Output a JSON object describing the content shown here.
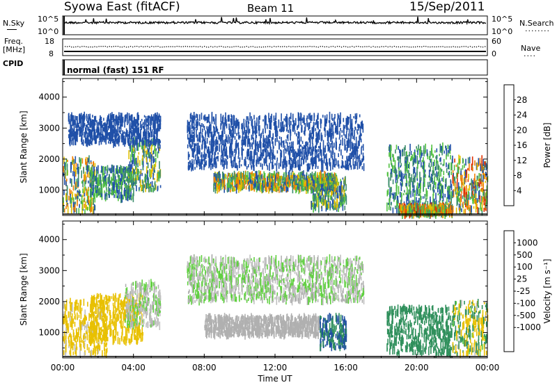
{
  "header": {
    "station": "Syowa East (fitACF)",
    "beam": "Beam 11",
    "date": "15/Sep/2011"
  },
  "strip_noise": {
    "left_label": "N.Sky",
    "right_label": "N.Search",
    "right_label_dots": "........",
    "tick_top": "10^5",
    "tick_bottom": "10^0"
  },
  "strip_freq": {
    "left_label_1": "Freq.",
    "left_label_2": "[MHz]",
    "left_tick_top": "18",
    "left_tick_bottom": "8",
    "right_label": "Nave",
    "right_label_dots": "....",
    "right_tick_top": "60",
    "right_tick_bottom": "0"
  },
  "cpid": {
    "label": "CPID",
    "text": "normal (fast) 151 RF"
  },
  "colors": {
    "power_scale": [
      "#0000ff",
      "#2050a8",
      "#3c8c6c",
      "#50c040",
      "#e0c000",
      "#f08000",
      "#e03000",
      "#ff0000"
    ],
    "velocity_scale": [
      "#ff0000",
      "#e04000",
      "#f09000",
      "#e8c000",
      "#c0c0c0",
      "#b0b0b0",
      "#60d040",
      "#30905c",
      "#2050a0",
      "#0000ff"
    ]
  },
  "chart_data": [
    {
      "type": "heatmap",
      "title": "Power",
      "xlabel": "",
      "ylabel": "Slant Range [km]",
      "x_ticks": [
        "00:00",
        "04:00",
        "08:00",
        "12:00",
        "16:00",
        "20:00",
        "00:00"
      ],
      "y_ticks": [
        1000,
        2000,
        3000,
        4000
      ],
      "xlim": [
        0,
        24
      ],
      "ylim": [
        180,
        4600
      ],
      "colorbar": {
        "label": "Power [dB]",
        "ticks": [
          4,
          8,
          12,
          16,
          20,
          24,
          28
        ],
        "range": [
          0,
          32
        ]
      },
      "regions": [
        {
          "t": [
            0.0,
            1.8
          ],
          "r": [
            300,
            2000
          ],
          "v": [
            4,
            24
          ]
        },
        {
          "t": [
            1.5,
            4.0
          ],
          "r": [
            700,
            1700
          ],
          "v": [
            4,
            16
          ]
        },
        {
          "t": [
            3.7,
            5.5
          ],
          "r": [
            1000,
            2600
          ],
          "v": [
            4,
            20
          ]
        },
        {
          "t": [
            0.3,
            5.5
          ],
          "r": [
            2500,
            3400
          ],
          "v": [
            4,
            8
          ]
        },
        {
          "t": [
            8.5,
            15.5
          ],
          "r": [
            1000,
            1500
          ],
          "v": [
            4,
            24
          ]
        },
        {
          "t": [
            14.0,
            16.0
          ],
          "r": [
            400,
            1400
          ],
          "v": [
            4,
            20
          ]
        },
        {
          "t": [
            7.0,
            17.0
          ],
          "r": [
            1700,
            3400
          ],
          "v": [
            4,
            8
          ]
        },
        {
          "t": [
            18.3,
            22.0
          ],
          "r": [
            300,
            2400
          ],
          "v": [
            4,
            16
          ]
        },
        {
          "t": [
            19.0,
            22.0
          ],
          "r": [
            200,
            500
          ],
          "v": [
            8,
            28
          ]
        },
        {
          "t": [
            22.0,
            24.0
          ],
          "r": [
            300,
            2000
          ],
          "v": [
            4,
            28
          ]
        }
      ]
    },
    {
      "type": "heatmap",
      "title": "Velocity",
      "xlabel": "Time UT",
      "ylabel": "Slant Range [km]",
      "x_ticks": [
        "00:00",
        "04:00",
        "08:00",
        "12:00",
        "16:00",
        "20:00",
        "00:00"
      ],
      "y_ticks": [
        1000,
        2000,
        3000,
        4000
      ],
      "xlim": [
        0,
        24
      ],
      "ylim": [
        180,
        4600
      ],
      "colorbar": {
        "label": "Velocity [m s⁻¹]",
        "ticks": [
          1000,
          500,
          100,
          25,
          -25,
          -100,
          -500,
          -1000
        ]
      },
      "regions": [
        {
          "t": [
            0.0,
            2.5
          ],
          "r": [
            300,
            2000
          ],
          "v": [
            -500,
            -25
          ]
        },
        {
          "t": [
            1.5,
            4.5
          ],
          "r": [
            700,
            2200
          ],
          "v": [
            -500,
            -100
          ]
        },
        {
          "t": [
            3.5,
            5.5
          ],
          "r": [
            1200,
            2600
          ],
          "v": [
            -100,
            100
          ]
        },
        {
          "t": [
            8.0,
            14.5
          ],
          "r": [
            900,
            1500
          ],
          "v": [
            -25,
            25
          ]
        },
        {
          "t": [
            14.5,
            16.0
          ],
          "r": [
            500,
            1500
          ],
          "v": [
            100,
            1000
          ]
        },
        {
          "t": [
            18.3,
            22.0
          ],
          "r": [
            300,
            1800
          ],
          "v": [
            100,
            500
          ]
        },
        {
          "t": [
            22.0,
            24.0
          ],
          "r": [
            300,
            2000
          ],
          "v": [
            -500,
            500
          ]
        },
        {
          "t": [
            7.0,
            17.0
          ],
          "r": [
            2000,
            3400
          ],
          "v": [
            -100,
            100
          ]
        }
      ]
    }
  ]
}
